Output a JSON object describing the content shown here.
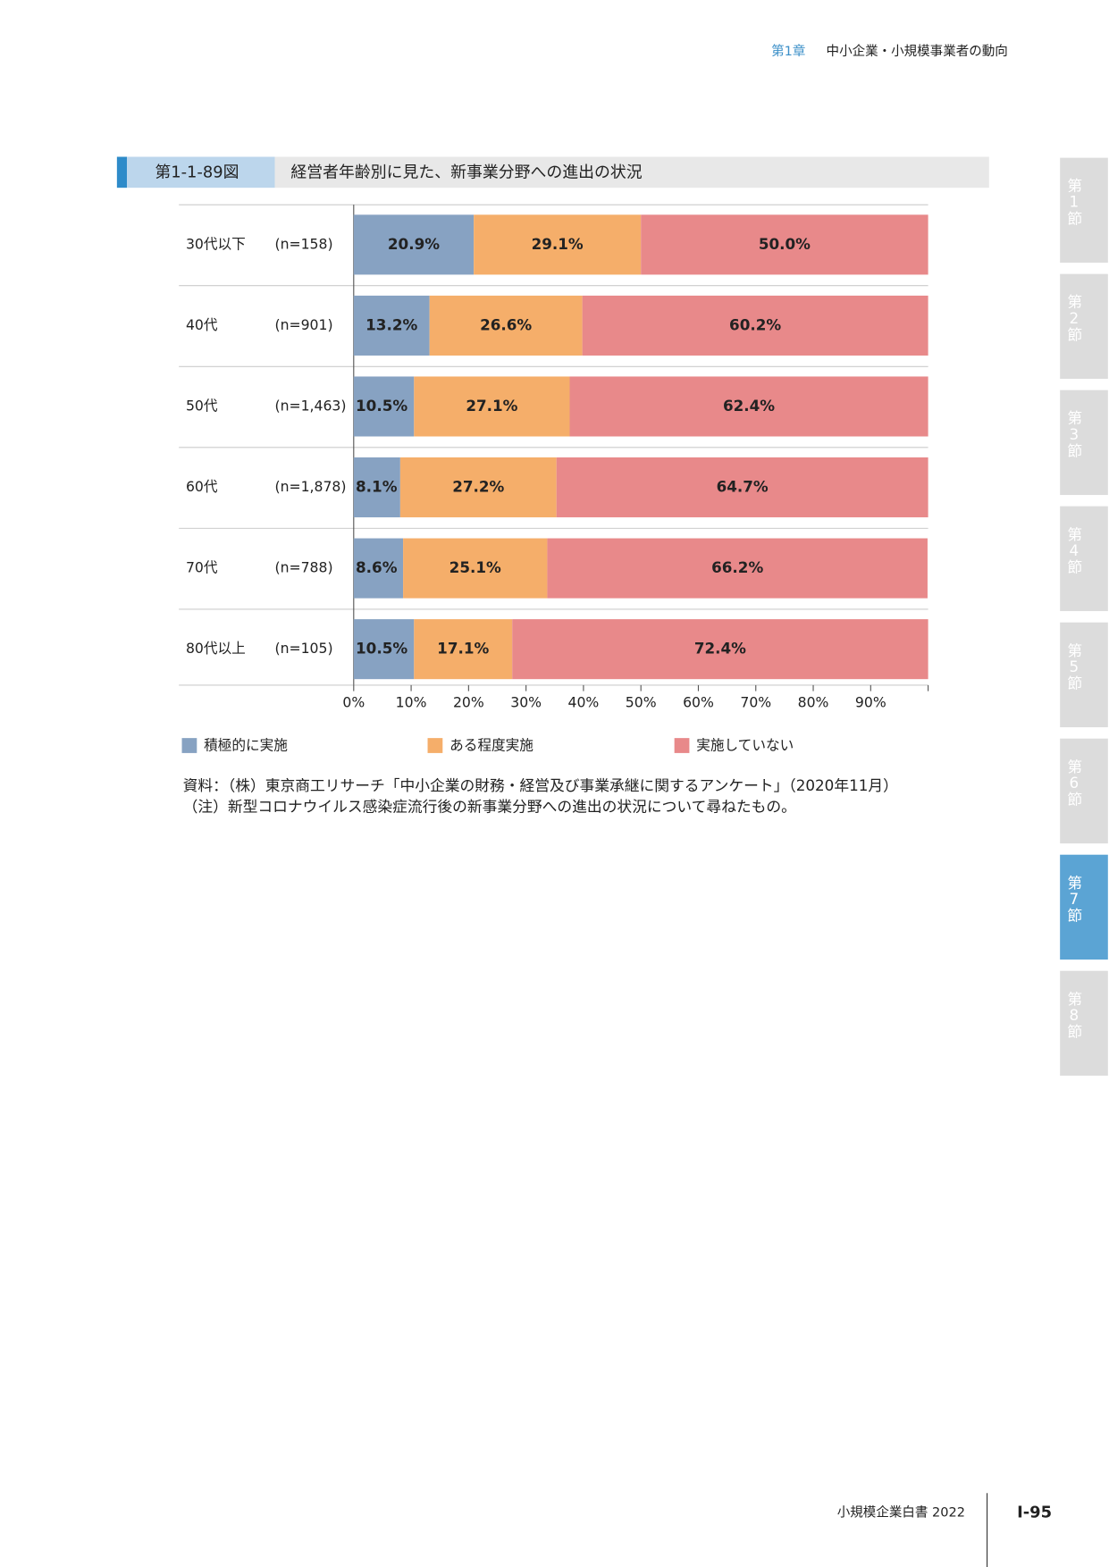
{
  "header": {
    "chapter": "第1章",
    "chapter_title": "中小企業・小規模事業者の動向"
  },
  "side_tabs": {
    "labels": [
      "第1節",
      "第2節",
      "第3節",
      "第4節",
      "第5節",
      "第6節",
      "第7節",
      "第8節"
    ],
    "active": 6
  },
  "figure": {
    "number": "第1-1-89図",
    "title": "経営者年齢別に見た、新事業分野への進出の状況"
  },
  "chart_data": {
    "type": "stacked_bar_horizontal",
    "categories": [
      "30代以下",
      "40代",
      "50代",
      "60代",
      "70代",
      "80代以上"
    ],
    "sample_sizes": [
      "(n=158)",
      "(n=901)",
      "(n=1,463)",
      "(n=1,878)",
      "(n=788)",
      "(n=105)"
    ],
    "series": [
      {
        "name": "積極的に実施",
        "color": "#87a2c2",
        "values": [
          20.9,
          13.2,
          10.5,
          8.1,
          8.6,
          10.5
        ],
        "value_labels": [
          "20.9%",
          "13.2%",
          "10.5%",
          "8.1%",
          "8.6%",
          "10.5%"
        ]
      },
      {
        "name": "ある程度実施",
        "color": "#f5ae6a",
        "values": [
          29.1,
          26.6,
          27.1,
          27.2,
          25.1,
          17.1
        ],
        "value_labels": [
          "29.1%",
          "26.6%",
          "27.1%",
          "27.2%",
          "25.1%",
          "17.1%"
        ]
      },
      {
        "name": "実施していない",
        "color": "#e8898a",
        "values": [
          50.0,
          60.2,
          62.4,
          64.7,
          66.2,
          72.4
        ],
        "value_labels": [
          "50.0%",
          "60.2%",
          "62.4%",
          "64.7%",
          "66.2%",
          "72.4%"
        ]
      }
    ],
    "xlim": [
      0,
      100
    ],
    "xticks": [
      {
        "value": 0,
        "label": "0%"
      },
      {
        "value": 10,
        "label": "10%"
      },
      {
        "value": 20,
        "label": "20%"
      },
      {
        "value": 30,
        "label": "30%"
      },
      {
        "value": 40,
        "label": "40%"
      },
      {
        "value": 50,
        "label": "50%"
      },
      {
        "value": 60,
        "label": "60%"
      },
      {
        "value": 70,
        "label": "70%"
      },
      {
        "value": 80,
        "label": "80%"
      },
      {
        "value": 90,
        "label": "90%"
      }
    ]
  },
  "notes": [
    "資料：（株）東京商工リサーチ「中小企業の財務・経営及び事業承継に関するアンケート」（2020年11月）",
    "（注）新型コロナウイルス感染症流行後の新事業分野への進出の状況について尋ねたもの。"
  ],
  "footer": {
    "publication": "小規模企業白書 2022",
    "page": "I-95"
  }
}
